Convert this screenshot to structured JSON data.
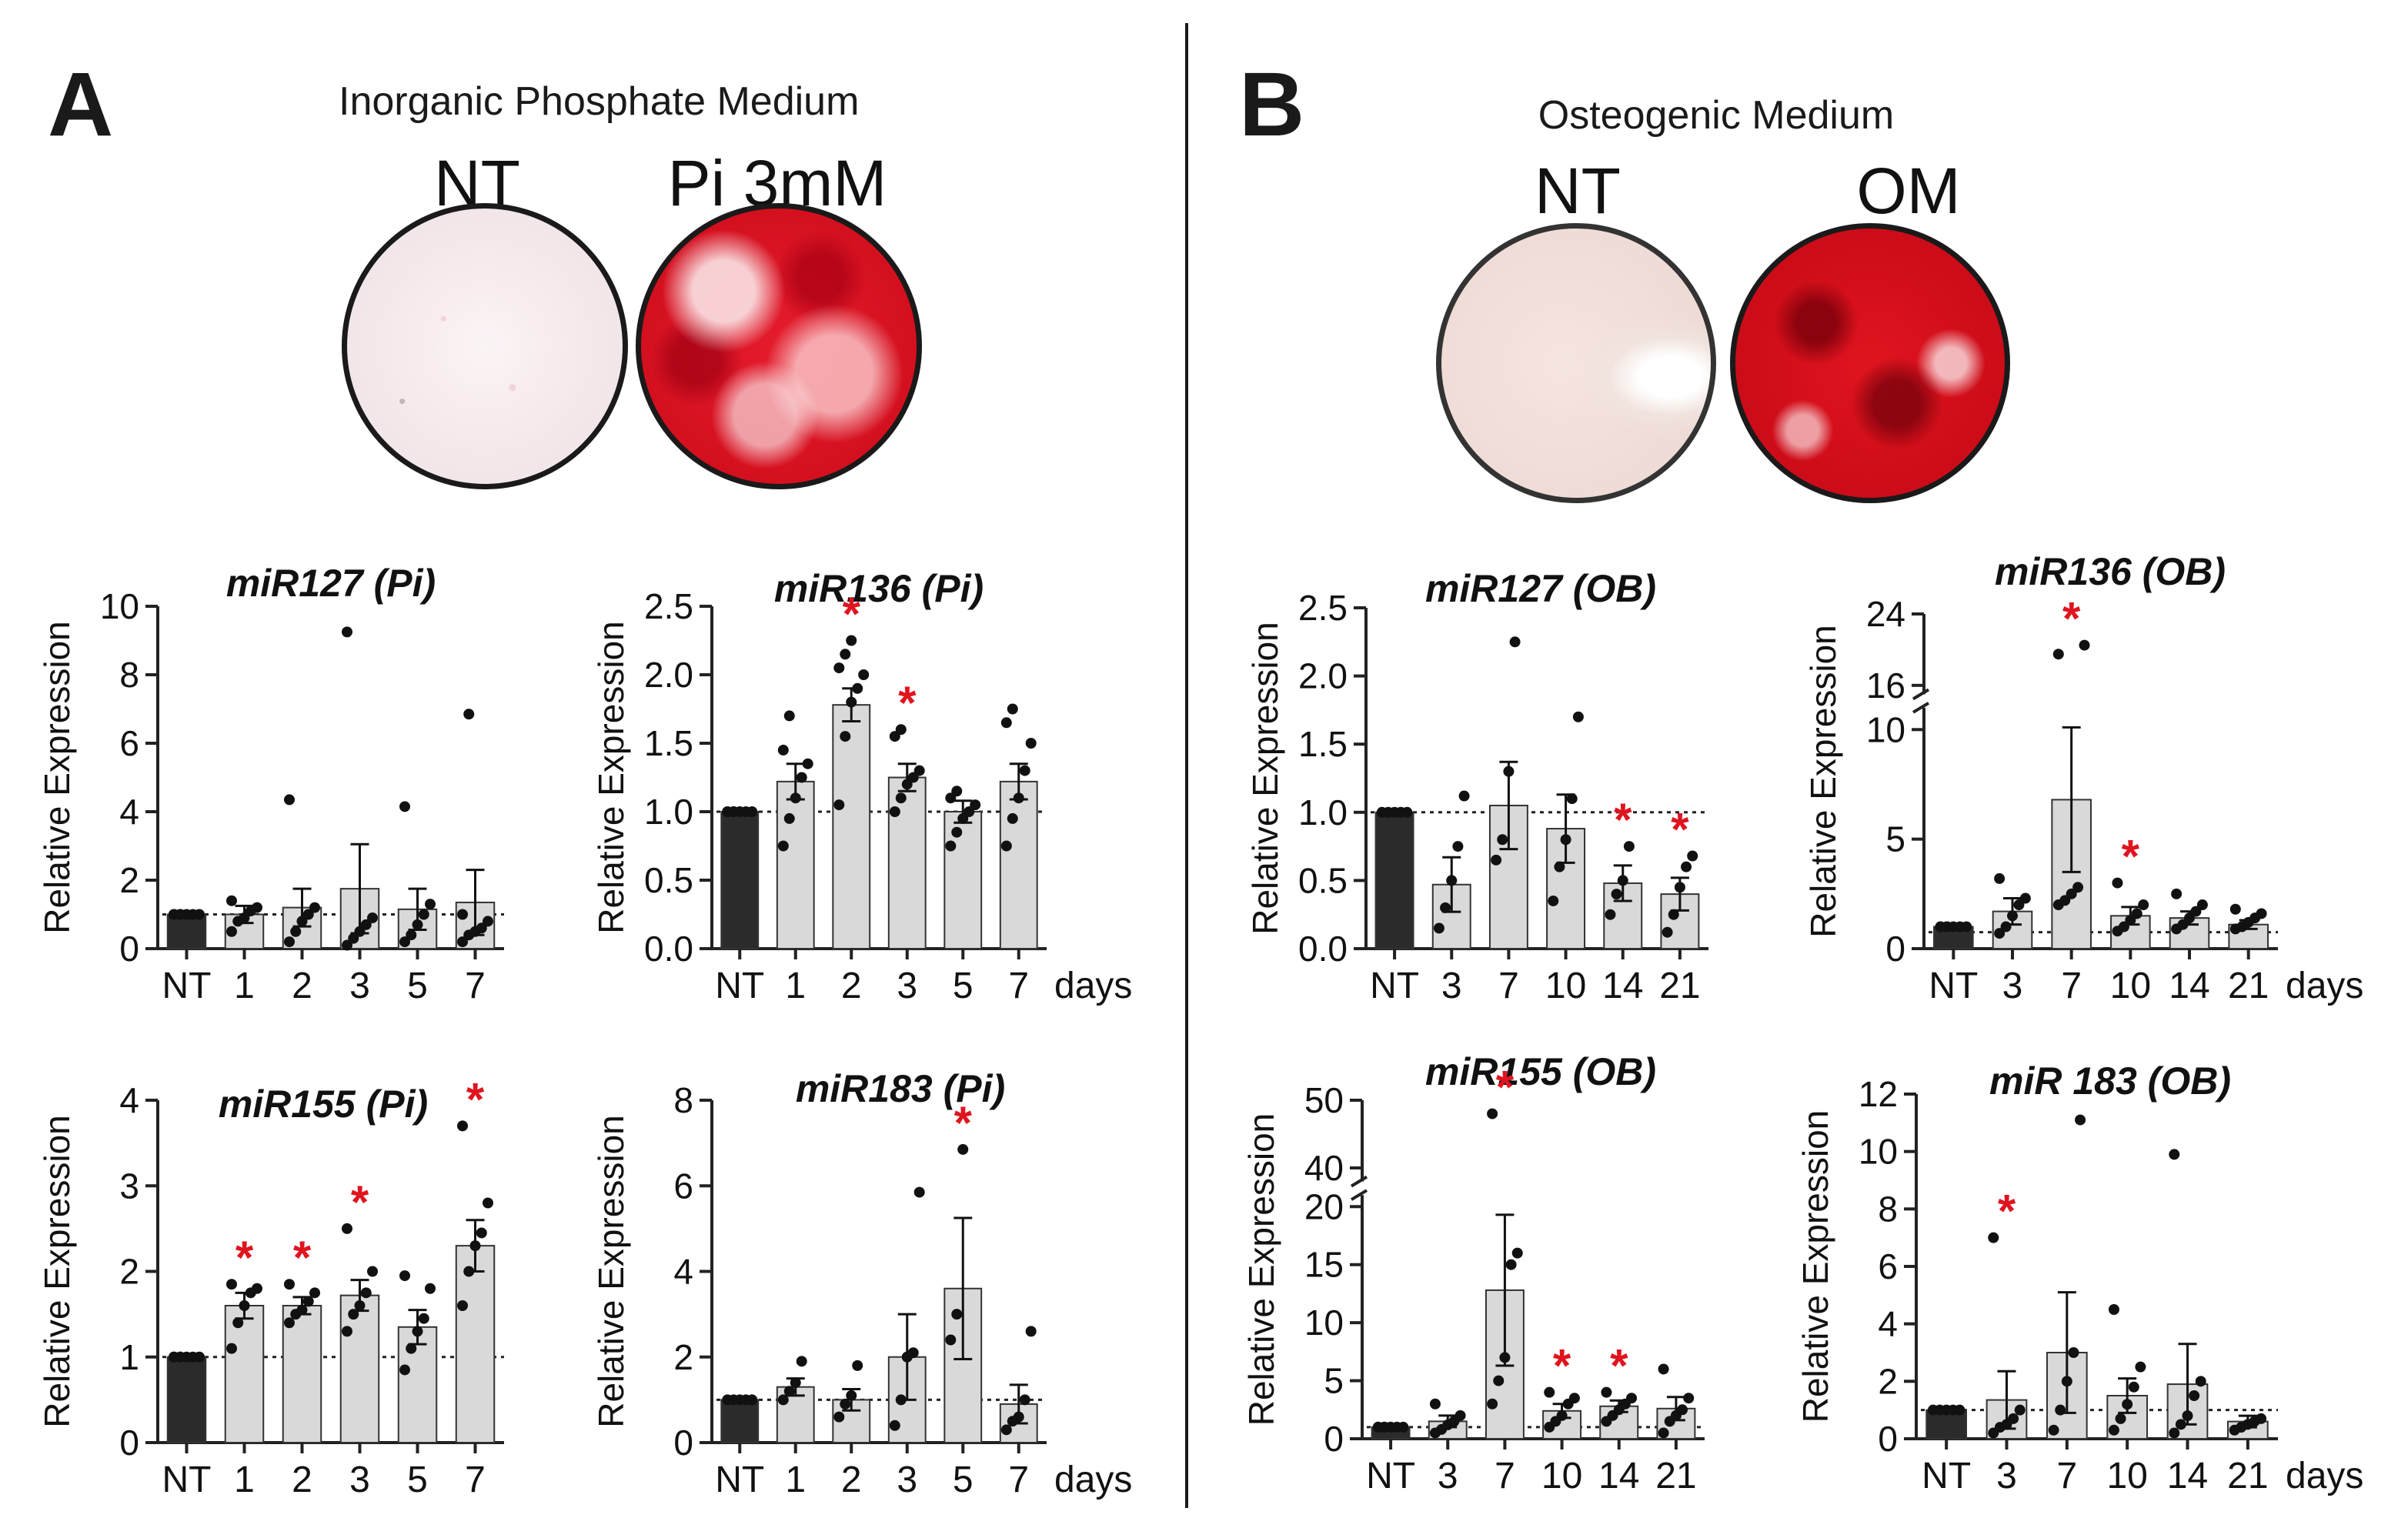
{
  "panel_A": {
    "letter": "A",
    "medium_title": "Inorganic Phosphate Medium",
    "well_labels": [
      "NT",
      "Pi 3mM"
    ]
  },
  "panel_B": {
    "letter": "B",
    "medium_title": "Osteogenic Medium",
    "well_labels": [
      "NT",
      "OM"
    ]
  },
  "colors": {
    "nt_bar": "#2b2b2b",
    "treat_bar": "#d9d9d9",
    "star": "#e0141f",
    "well_stain": "#d4101f"
  },
  "chart_data": [
    {
      "id": "a1",
      "type": "bar",
      "title": "miR127 (Pi)",
      "ylabel": "Relative Expression",
      "categories": [
        "NT",
        "1",
        "2",
        "3",
        "5",
        "7"
      ],
      "unit_label": "",
      "values": [
        1.0,
        1.0,
        1.2,
        1.75,
        1.15,
        1.35
      ],
      "errors": [
        0.0,
        0.25,
        0.55,
        1.3,
        0.6,
        0.95
      ],
      "points": [
        [
          1,
          1,
          1,
          1,
          1,
          1,
          1
        ],
        [
          0.5,
          0.8,
          0.9,
          1.1,
          1.2,
          1.4
        ],
        [
          0.2,
          0.5,
          0.8,
          1.0,
          1.2,
          4.35
        ],
        [
          0.1,
          0.3,
          0.5,
          0.7,
          0.9,
          9.25
        ],
        [
          0.2,
          0.4,
          0.7,
          1.0,
          1.3,
          4.15
        ],
        [
          0.2,
          0.4,
          0.5,
          0.6,
          0.8,
          1.0,
          6.85
        ]
      ],
      "significant": [
        false,
        false,
        false,
        false,
        false,
        false
      ],
      "ylim": [
        0,
        10
      ],
      "yticks": [
        0,
        2,
        4,
        6,
        8,
        10
      ],
      "ytick_labels": [
        "0",
        "2",
        "4",
        "6",
        "8",
        "10"
      ],
      "reference_line": 1.0
    },
    {
      "id": "a2",
      "type": "bar",
      "title": "miR136 (Pi)",
      "ylabel": "Relative Expression",
      "categories": [
        "NT",
        "1",
        "2",
        "3",
        "5",
        "7"
      ],
      "unit_label": "days",
      "values": [
        1.0,
        1.22,
        1.78,
        1.25,
        1.0,
        1.22
      ],
      "errors": [
        0.0,
        0.13,
        0.12,
        0.1,
        0.08,
        0.13
      ],
      "points": [
        [
          1,
          1,
          1,
          1,
          1,
          1,
          1
        ],
        [
          0.75,
          0.95,
          1.1,
          1.25,
          1.35,
          1.45,
          1.7
        ],
        [
          1.05,
          1.55,
          1.8,
          1.9,
          2.0,
          2.05,
          2.15,
          2.25
        ],
        [
          1.0,
          1.1,
          1.2,
          1.25,
          1.3,
          1.55,
          1.6
        ],
        [
          0.75,
          0.85,
          0.95,
          1.0,
          1.05,
          1.1,
          1.15
        ],
        [
          0.75,
          0.95,
          1.1,
          1.3,
          1.5,
          1.65,
          1.75
        ]
      ],
      "significant": [
        false,
        false,
        true,
        true,
        false,
        false
      ],
      "ylim": [
        0,
        2.5
      ],
      "yticks": [
        0,
        0.5,
        1.0,
        1.5,
        2.0,
        2.5
      ],
      "ytick_labels": [
        "0.0",
        "0.5",
        "1.0",
        "1.5",
        "2.0",
        "2.5"
      ],
      "reference_line": 1.0
    },
    {
      "id": "a3",
      "type": "bar",
      "title": "miR155 (Pi)",
      "ylabel": "Relative Expression",
      "categories": [
        "NT",
        "1",
        "2",
        "3",
        "5",
        "7"
      ],
      "unit_label": "",
      "values": [
        1.0,
        1.6,
        1.6,
        1.72,
        1.35,
        2.3
      ],
      "errors": [
        0.0,
        0.15,
        0.1,
        0.18,
        0.2,
        0.3
      ],
      "points": [
        [
          1,
          1,
          1,
          1,
          1,
          1,
          1
        ],
        [
          1.1,
          1.4,
          1.6,
          1.75,
          1.8,
          1.85
        ],
        [
          1.4,
          1.5,
          1.55,
          1.65,
          1.75,
          1.85
        ],
        [
          1.3,
          1.5,
          1.6,
          1.75,
          2.0,
          2.5
        ],
        [
          0.85,
          1.1,
          1.3,
          1.45,
          1.8,
          1.95
        ],
        [
          1.6,
          2.0,
          2.3,
          2.45,
          2.8,
          3.7
        ]
      ],
      "significant": [
        false,
        true,
        true,
        true,
        false,
        true
      ],
      "ylim": [
        0,
        4
      ],
      "yticks": [
        0,
        1,
        2,
        3,
        4
      ],
      "ytick_labels": [
        "0",
        "1",
        "2",
        "3",
        "4"
      ],
      "reference_line": 1.0
    },
    {
      "id": "a4",
      "type": "bar",
      "title": "miR183 (Pi)",
      "ylabel": "Relative Expression",
      "categories": [
        "NT",
        "1",
        "2",
        "3",
        "5",
        "7"
      ],
      "unit_label": "days",
      "values": [
        1.0,
        1.3,
        1.0,
        2.0,
        3.6,
        0.9
      ],
      "errors": [
        0.0,
        0.2,
        0.25,
        1.0,
        1.65,
        0.45
      ],
      "points": [
        [
          1,
          1,
          1,
          1,
          1
        ],
        [
          1.0,
          1.2,
          1.4,
          1.9
        ],
        [
          0.6,
          0.9,
          1.1,
          1.8
        ],
        [
          0.4,
          1.0,
          2.0,
          2.1,
          5.85
        ],
        [
          2.4,
          3.0,
          6.85
        ],
        [
          0.3,
          0.5,
          0.6,
          1.0,
          2.6
        ]
      ],
      "significant": [
        false,
        false,
        false,
        false,
        true,
        false
      ],
      "ylim": [
        0,
        8
      ],
      "yticks": [
        0,
        2,
        4,
        6,
        8
      ],
      "ytick_labels": [
        "0",
        "2",
        "4",
        "6",
        "8"
      ],
      "reference_line": 1.0
    },
    {
      "id": "b1",
      "type": "bar",
      "title": "miR127 (OB)",
      "ylabel": "Relative Expression",
      "categories": [
        "NT",
        "3",
        "7",
        "10",
        "14",
        "21"
      ],
      "unit_label": "",
      "values": [
        1.0,
        0.47,
        1.05,
        0.88,
        0.48,
        0.4
      ],
      "errors": [
        0.0,
        0.2,
        0.32,
        0.25,
        0.13,
        0.12
      ],
      "points": [
        [
          1,
          1,
          1,
          1,
          1
        ],
        [
          0.15,
          0.3,
          0.5,
          0.75,
          1.12
        ],
        [
          0.65,
          0.8,
          1.3,
          2.25
        ],
        [
          0.35,
          0.6,
          0.8,
          1.1,
          1.7
        ],
        [
          0.25,
          0.4,
          0.5,
          0.75
        ],
        [
          0.12,
          0.25,
          0.45,
          0.6,
          0.68
        ]
      ],
      "significant": [
        false,
        false,
        false,
        false,
        true,
        true
      ],
      "ylim": [
        0,
        2.5
      ],
      "yticks": [
        0,
        0.5,
        1.0,
        1.5,
        2.0,
        2.5
      ],
      "ytick_labels": [
        "0.0",
        "0.5",
        "1.0",
        "1.5",
        "2.0",
        "2.5"
      ],
      "reference_line": 1.0
    },
    {
      "id": "b2",
      "type": "bar",
      "title": "miR136 (OB)",
      "ylabel": "Relative Expression",
      "categories": [
        "NT",
        "3",
        "7",
        "10",
        "14",
        "21"
      ],
      "unit_label": "days",
      "values": [
        1.0,
        1.7,
        6.8,
        1.5,
        1.4,
        1.1
      ],
      "errors": [
        0.0,
        0.6,
        3.3,
        0.4,
        0.3,
        0.2
      ],
      "points": [
        [
          1,
          1,
          1,
          1,
          1,
          1,
          1
        ],
        [
          0.7,
          1.0,
          1.5,
          2.0,
          2.3,
          3.2
        ],
        [
          2.0,
          2.2,
          2.5,
          2.8,
          20.5,
          19.5
        ],
        [
          0.8,
          1.0,
          1.3,
          1.6,
          2.0,
          3.0
        ],
        [
          0.9,
          1.1,
          1.4,
          1.7,
          2.0,
          2.5
        ],
        [
          0.9,
          1.0,
          1.2,
          1.4,
          1.6,
          1.8
        ]
      ],
      "significant": [
        false,
        false,
        true,
        true,
        false,
        false
      ],
      "ylim": [
        0,
        24
      ],
      "yticks": [
        0,
        5,
        10,
        16,
        24
      ],
      "ytick_labels": [
        "0",
        "5",
        "10",
        "16",
        "24"
      ],
      "axis_break": [
        11,
        15
      ],
      "reference_line": 0.75
    },
    {
      "id": "b3",
      "type": "bar",
      "title": "miR155 (OB)",
      "ylabel": "Relative Expression",
      "categories": [
        "NT",
        "3",
        "7",
        "10",
        "14",
        "21"
      ],
      "unit_label": "",
      "values": [
        1.0,
        1.5,
        12.8,
        2.4,
        2.8,
        2.6
      ],
      "errors": [
        0.0,
        0.5,
        6.5,
        0.6,
        0.5,
        1.0
      ],
      "points": [
        [
          1,
          1,
          1,
          1,
          1,
          1,
          1
        ],
        [
          0.5,
          0.8,
          1.2,
          1.5,
          2.0,
          3.0
        ],
        [
          3.0,
          5.0,
          7.0,
          15.0,
          16.0,
          48.0
        ],
        [
          1.0,
          1.5,
          2.0,
          3.0,
          3.5,
          4.0
        ],
        [
          1.5,
          2.0,
          2.5,
          3.0,
          3.5,
          4.0
        ],
        [
          0.5,
          1.5,
          2.0,
          2.5,
          3.5,
          6.0
        ]
      ],
      "significant": [
        false,
        false,
        true,
        true,
        true,
        false
      ],
      "ylim": [
        0,
        50
      ],
      "yticks": [
        0,
        5,
        10,
        15,
        20,
        40,
        50
      ],
      "ytick_labels": [
        "0",
        "5",
        "10",
        "15",
        "20",
        "40",
        "50"
      ],
      "axis_break": [
        21,
        38
      ],
      "reference_line": 1.0
    },
    {
      "id": "b4",
      "type": "bar",
      "title": "miR 183 (OB)",
      "ylabel": "Relative Expression",
      "categories": [
        "NT",
        "3",
        "7",
        "10",
        "14",
        "21"
      ],
      "unit_label": "days",
      "values": [
        1.0,
        1.35,
        3.0,
        1.5,
        1.9,
        0.6
      ],
      "errors": [
        0.0,
        1.0,
        2.1,
        0.6,
        1.4,
        0.2
      ],
      "points": [
        [
          1,
          1,
          1,
          1,
          1
        ],
        [
          0.2,
          0.4,
          0.5,
          0.7,
          1.0,
          7.0
        ],
        [
          0.3,
          1.0,
          2.0,
          3.0,
          11.1
        ],
        [
          0.3,
          0.7,
          1.2,
          1.8,
          2.5,
          4.5
        ],
        [
          0.2,
          0.5,
          0.8,
          1.5,
          2.0,
          9.9
        ],
        [
          0.3,
          0.4,
          0.5,
          0.6,
          0.7
        ]
      ],
      "significant": [
        false,
        true,
        false,
        false,
        false,
        false
      ],
      "ylim": [
        0,
        12
      ],
      "yticks": [
        0,
        2,
        4,
        6,
        8,
        10,
        12
      ],
      "ytick_labels": [
        "0",
        "2",
        "4",
        "6",
        "8",
        "10",
        "12"
      ],
      "reference_line": 1.0
    }
  ]
}
